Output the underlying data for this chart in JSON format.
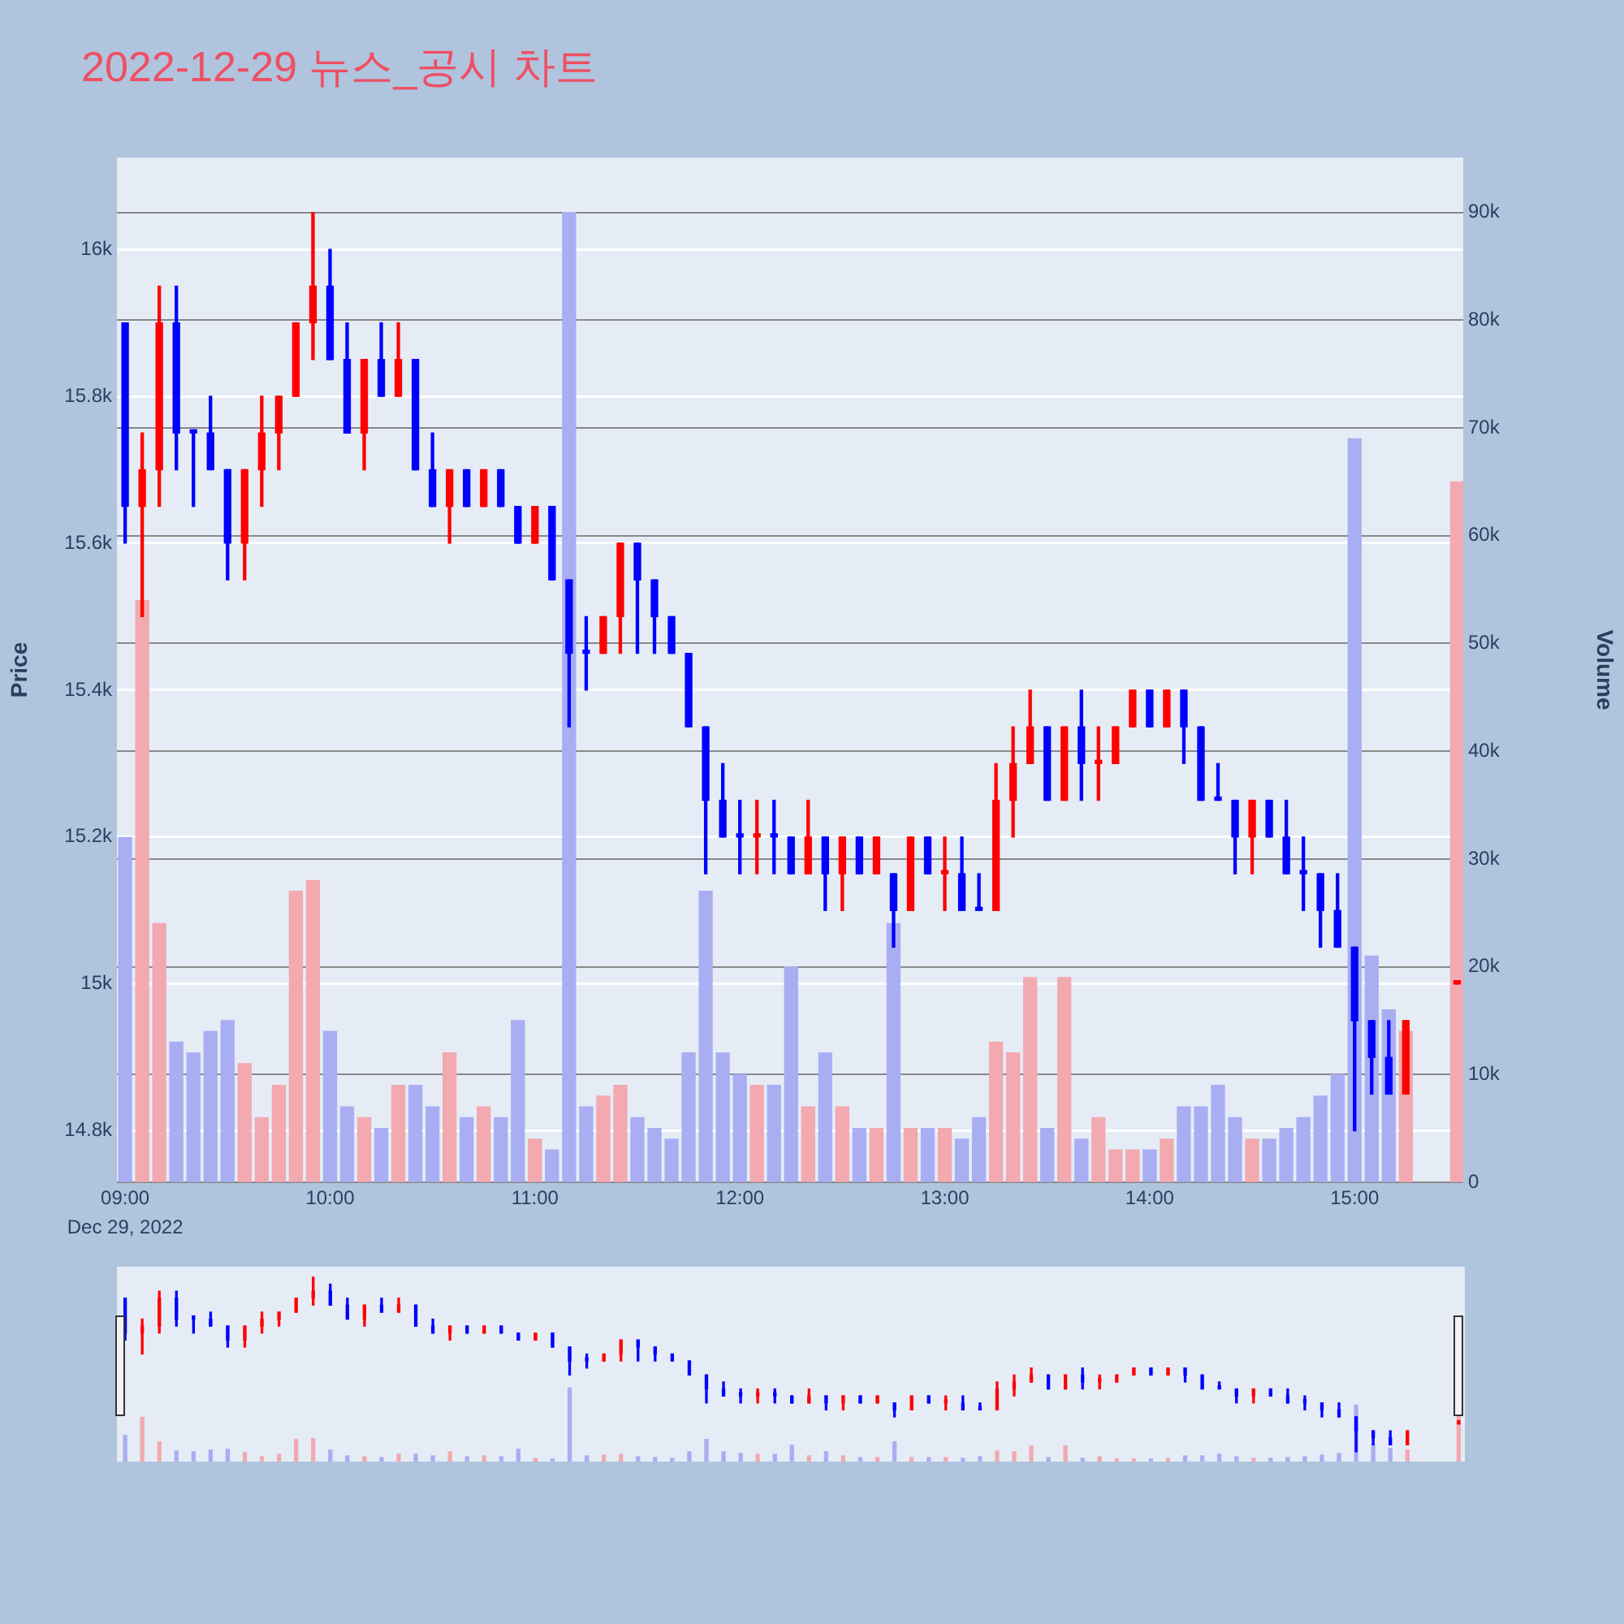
{
  "chart_data": {
    "type": "candlestick",
    "title": "2022-12-29 뉴스_공시 차트",
    "ylabel": "Price",
    "y2label": "Volume",
    "annotations": [
      "Dec 29, 2022"
    ],
    "x": [
      9,
      9.0833,
      9.1667,
      9.25,
      9.3333,
      9.4167,
      9.5,
      9.5833,
      9.6667,
      9.75,
      9.8333,
      9.9167,
      10,
      10.0833,
      10.1667,
      10.25,
      10.3333,
      10.4167,
      10.5,
      10.5833,
      10.6667,
      10.75,
      10.8333,
      10.9167,
      11,
      11.0833,
      11.1667,
      11.25,
      11.3333,
      11.4167,
      11.5,
      11.5833,
      11.6667,
      11.75,
      11.8333,
      11.9167,
      12,
      12.0833,
      12.1667,
      12.25,
      12.3333,
      12.4167,
      12.5,
      12.5833,
      12.6667,
      12.75,
      12.8333,
      12.9167,
      13,
      13.0833,
      13.1667,
      13.25,
      13.3333,
      13.4167,
      13.5,
      13.5833,
      13.6667,
      13.75,
      13.8333,
      13.9167,
      14,
      14.0833,
      14.1667,
      14.25,
      14.3333,
      14.4167,
      14.5,
      14.5833,
      14.6667,
      14.75,
      14.8333,
      14.9167,
      15,
      15.0833,
      15.1667,
      15.25,
      15.5
    ],
    "ohlc": [
      [
        15900,
        15900,
        15600,
        15650
      ],
      [
        15650,
        15750,
        15500,
        15700
      ],
      [
        15700,
        15950,
        15650,
        15900
      ],
      [
        15900,
        15950,
        15700,
        15750
      ],
      [
        15750,
        15750,
        15650,
        15750
      ],
      [
        15750,
        15800,
        15700,
        15700
      ],
      [
        15700,
        15700,
        15550,
        15600
      ],
      [
        15600,
        15700,
        15550,
        15700
      ],
      [
        15700,
        15800,
        15650,
        15750
      ],
      [
        15750,
        15800,
        15700,
        15800
      ],
      [
        15800,
        15900,
        15800,
        15900
      ],
      [
        15900,
        16050,
        15850,
        15950
      ],
      [
        15950,
        16000,
        15850,
        15850
      ],
      [
        15850,
        15900,
        15750,
        15750
      ],
      [
        15750,
        15850,
        15700,
        15850
      ],
      [
        15850,
        15900,
        15800,
        15800
      ],
      [
        15800,
        15900,
        15800,
        15850
      ],
      [
        15850,
        15850,
        15700,
        15700
      ],
      [
        15700,
        15750,
        15650,
        15650
      ],
      [
        15650,
        15700,
        15600,
        15700
      ],
      [
        15700,
        15700,
        15650,
        15650
      ],
      [
        15650,
        15700,
        15650,
        15700
      ],
      [
        15700,
        15700,
        15650,
        15650
      ],
      [
        15650,
        15650,
        15600,
        15600
      ],
      [
        15600,
        15650,
        15600,
        15650
      ],
      [
        15650,
        15650,
        15550,
        15550
      ],
      [
        15550,
        15550,
        15350,
        15450
      ],
      [
        15450,
        15500,
        15400,
        15450
      ],
      [
        15450,
        15500,
        15450,
        15500
      ],
      [
        15500,
        15600,
        15450,
        15600
      ],
      [
        15600,
        15600,
        15450,
        15550
      ],
      [
        15550,
        15550,
        15450,
        15500
      ],
      [
        15500,
        15500,
        15450,
        15450
      ],
      [
        15450,
        15450,
        15350,
        15350
      ],
      [
        15350,
        15350,
        15150,
        15250
      ],
      [
        15250,
        15300,
        15200,
        15200
      ],
      [
        15200,
        15250,
        15150,
        15200
      ],
      [
        15200,
        15250,
        15150,
        15200
      ],
      [
        15200,
        15250,
        15150,
        15200
      ],
      [
        15200,
        15200,
        15150,
        15150
      ],
      [
        15150,
        15250,
        15150,
        15200
      ],
      [
        15200,
        15200,
        15100,
        15150
      ],
      [
        15150,
        15200,
        15100,
        15200
      ],
      [
        15200,
        15200,
        15150,
        15150
      ],
      [
        15150,
        15200,
        15150,
        15200
      ],
      [
        15150,
        15150,
        15050,
        15100
      ],
      [
        15100,
        15200,
        15100,
        15200
      ],
      [
        15200,
        15200,
        15150,
        15150
      ],
      [
        15150,
        15200,
        15100,
        15150
      ],
      [
        15150,
        15200,
        15100,
        15100
      ],
      [
        15100,
        15150,
        15100,
        15100
      ],
      [
        15100,
        15300,
        15100,
        15250
      ],
      [
        15250,
        15350,
        15200,
        15300
      ],
      [
        15300,
        15400,
        15300,
        15350
      ],
      [
        15350,
        15350,
        15250,
        15250
      ],
      [
        15250,
        15350,
        15250,
        15350
      ],
      [
        15350,
        15400,
        15250,
        15300
      ],
      [
        15300,
        15350,
        15250,
        15300
      ],
      [
        15300,
        15350,
        15300,
        15350
      ],
      [
        15350,
        15400,
        15350,
        15400
      ],
      [
        15400,
        15400,
        15350,
        15350
      ],
      [
        15350,
        15400,
        15350,
        15400
      ],
      [
        15400,
        15400,
        15300,
        15350
      ],
      [
        15350,
        15350,
        15250,
        15250
      ],
      [
        15250,
        15300,
        15250,
        15250
      ],
      [
        15250,
        15250,
        15150,
        15200
      ],
      [
        15200,
        15250,
        15150,
        15250
      ],
      [
        15250,
        15250,
        15200,
        15200
      ],
      [
        15200,
        15250,
        15150,
        15150
      ],
      [
        15150,
        15200,
        15100,
        15150
      ],
      [
        15150,
        15150,
        15050,
        15100
      ],
      [
        15100,
        15150,
        15050,
        15050
      ],
      [
        15050,
        15050,
        14800,
        14950
      ],
      [
        14950,
        14950,
        14850,
        14900
      ],
      [
        14900,
        14950,
        14850,
        14850
      ],
      [
        14850,
        14950,
        14850,
        14950
      ],
      [
        15000,
        15000,
        15000,
        15000
      ]
    ],
    "colors": [
      "#0000ff",
      "#ff0000",
      "#ff0000",
      "#0000ff",
      "#0000ff",
      "#0000ff",
      "#0000ff",
      "#ff0000",
      "#ff0000",
      "#ff0000",
      "#ff0000",
      "#ff0000",
      "#0000ff",
      "#0000ff",
      "#ff0000",
      "#0000ff",
      "#ff0000",
      "#0000ff",
      "#0000ff",
      "#ff0000",
      "#0000ff",
      "#ff0000",
      "#0000ff",
      "#0000ff",
      "#ff0000",
      "#0000ff",
      "#0000ff",
      "#0000ff",
      "#ff0000",
      "#ff0000",
      "#0000ff",
      "#0000ff",
      "#0000ff",
      "#0000ff",
      "#0000ff",
      "#0000ff",
      "#0000ff",
      "#ff0000",
      "#0000ff",
      "#0000ff",
      "#ff0000",
      "#0000ff",
      "#ff0000",
      "#0000ff",
      "#ff0000",
      "#0000ff",
      "#ff0000",
      "#0000ff",
      "#ff0000",
      "#0000ff",
      "#0000ff",
      "#ff0000",
      "#ff0000",
      "#ff0000",
      "#0000ff",
      "#ff0000",
      "#0000ff",
      "#ff0000",
      "#ff0000",
      "#ff0000",
      "#0000ff",
      "#ff0000",
      "#0000ff",
      "#0000ff",
      "#0000ff",
      "#0000ff",
      "#ff0000",
      "#0000ff",
      "#0000ff",
      "#0000ff",
      "#0000ff",
      "#0000ff",
      "#0000ff",
      "#0000ff",
      "#0000ff",
      "#ff0000",
      "#ff0000"
    ],
    "series": [
      {
        "type": "bar",
        "axis": "y2",
        "values": [
          32000,
          54000,
          24000,
          13000,
          12000,
          14000,
          15000,
          11000,
          6000,
          9000,
          27000,
          28000,
          14000,
          7000,
          6000,
          5000,
          9000,
          9000,
          7000,
          12000,
          6000,
          7000,
          6000,
          15000,
          4000,
          3000,
          90000,
          7000,
          8000,
          9000,
          6000,
          5000,
          4000,
          12000,
          27000,
          12000,
          10000,
          9000,
          9000,
          20000,
          7000,
          12000,
          7000,
          5000,
          5000,
          24000,
          5000,
          5000,
          5000,
          4000,
          6000,
          13000,
          12000,
          19000,
          5000,
          19000,
          4000,
          6000,
          3000,
          3000,
          3000,
          4000,
          7000,
          7000,
          9000,
          6000,
          4000,
          4000,
          5000,
          6000,
          8000,
          10000,
          69000,
          21000,
          16000,
          14000,
          65000
        ],
        "colors": [
          "#a9aef2",
          "#f2a9b0",
          "#f2a9b0",
          "#a9aef2",
          "#a9aef2",
          "#a9aef2",
          "#a9aef2",
          "#f2a9b0",
          "#f2a9b0",
          "#f2a9b0",
          "#f2a9b0",
          "#f2a9b0",
          "#a9aef2",
          "#a9aef2",
          "#f2a9b0",
          "#a9aef2",
          "#f2a9b0",
          "#a9aef2",
          "#a9aef2",
          "#f2a9b0",
          "#a9aef2",
          "#f2a9b0",
          "#a9aef2",
          "#a9aef2",
          "#f2a9b0",
          "#a9aef2",
          "#a9aef2",
          "#a9aef2",
          "#f2a9b0",
          "#f2a9b0",
          "#a9aef2",
          "#a9aef2",
          "#a9aef2",
          "#a9aef2",
          "#a9aef2",
          "#a9aef2",
          "#a9aef2",
          "#f2a9b0",
          "#a9aef2",
          "#a9aef2",
          "#f2a9b0",
          "#a9aef2",
          "#f2a9b0",
          "#a9aef2",
          "#f2a9b0",
          "#a9aef2",
          "#f2a9b0",
          "#a9aef2",
          "#f2a9b0",
          "#a9aef2",
          "#a9aef2",
          "#f2a9b0",
          "#f2a9b0",
          "#f2a9b0",
          "#a9aef2",
          "#f2a9b0",
          "#a9aef2",
          "#f2a9b0",
          "#f2a9b0",
          "#f2a9b0",
          "#a9aef2",
          "#f2a9b0",
          "#a9aef2",
          "#a9aef2",
          "#a9aef2",
          "#a9aef2",
          "#f2a9b0",
          "#a9aef2",
          "#a9aef2",
          "#a9aef2",
          "#a9aef2",
          "#a9aef2",
          "#a9aef2",
          "#a9aef2",
          "#a9aef2",
          "#f2a9b0",
          "#f2a9b0"
        ]
      }
    ],
    "xlim": [
      8.96,
      15.53
    ],
    "xticks": [
      {
        "value": 9,
        "label": "09:00"
      },
      {
        "value": 10,
        "label": "10:00"
      },
      {
        "value": 11,
        "label": "11:00"
      },
      {
        "value": 12,
        "label": "12:00"
      },
      {
        "value": 13,
        "label": "13:00"
      },
      {
        "value": 14,
        "label": "14:00"
      },
      {
        "value": 15,
        "label": "15:00"
      }
    ],
    "ylim": [
      14730,
      16125
    ],
    "yticks": [
      {
        "value": 14800,
        "label": "14.8k"
      },
      {
        "value": 15000,
        "label": "15k"
      },
      {
        "value": 15200,
        "label": "15.2k"
      },
      {
        "value": 15400,
        "label": "15.4k"
      },
      {
        "value": 15600,
        "label": "15.6k"
      },
      {
        "value": 15800,
        "label": "15.8k"
      },
      {
        "value": 16000,
        "label": "16k"
      }
    ],
    "y2lim": [
      0,
      95100
    ],
    "y2ticks": [
      0,
      {
        "value": 10000,
        "label": "10k"
      },
      {
        "value": 20000,
        "label": "20k"
      },
      {
        "value": 30000,
        "label": "30k"
      },
      {
        "value": 40000,
        "label": "40k"
      },
      {
        "value": 50000,
        "label": "50k"
      },
      {
        "value": 60000,
        "label": "60k"
      },
      {
        "value": 70000,
        "label": "70k"
      },
      {
        "value": 80000,
        "label": "80k"
      },
      {
        "value": 90000,
        "label": "90k"
      }
    ],
    "grid": "y"
  }
}
